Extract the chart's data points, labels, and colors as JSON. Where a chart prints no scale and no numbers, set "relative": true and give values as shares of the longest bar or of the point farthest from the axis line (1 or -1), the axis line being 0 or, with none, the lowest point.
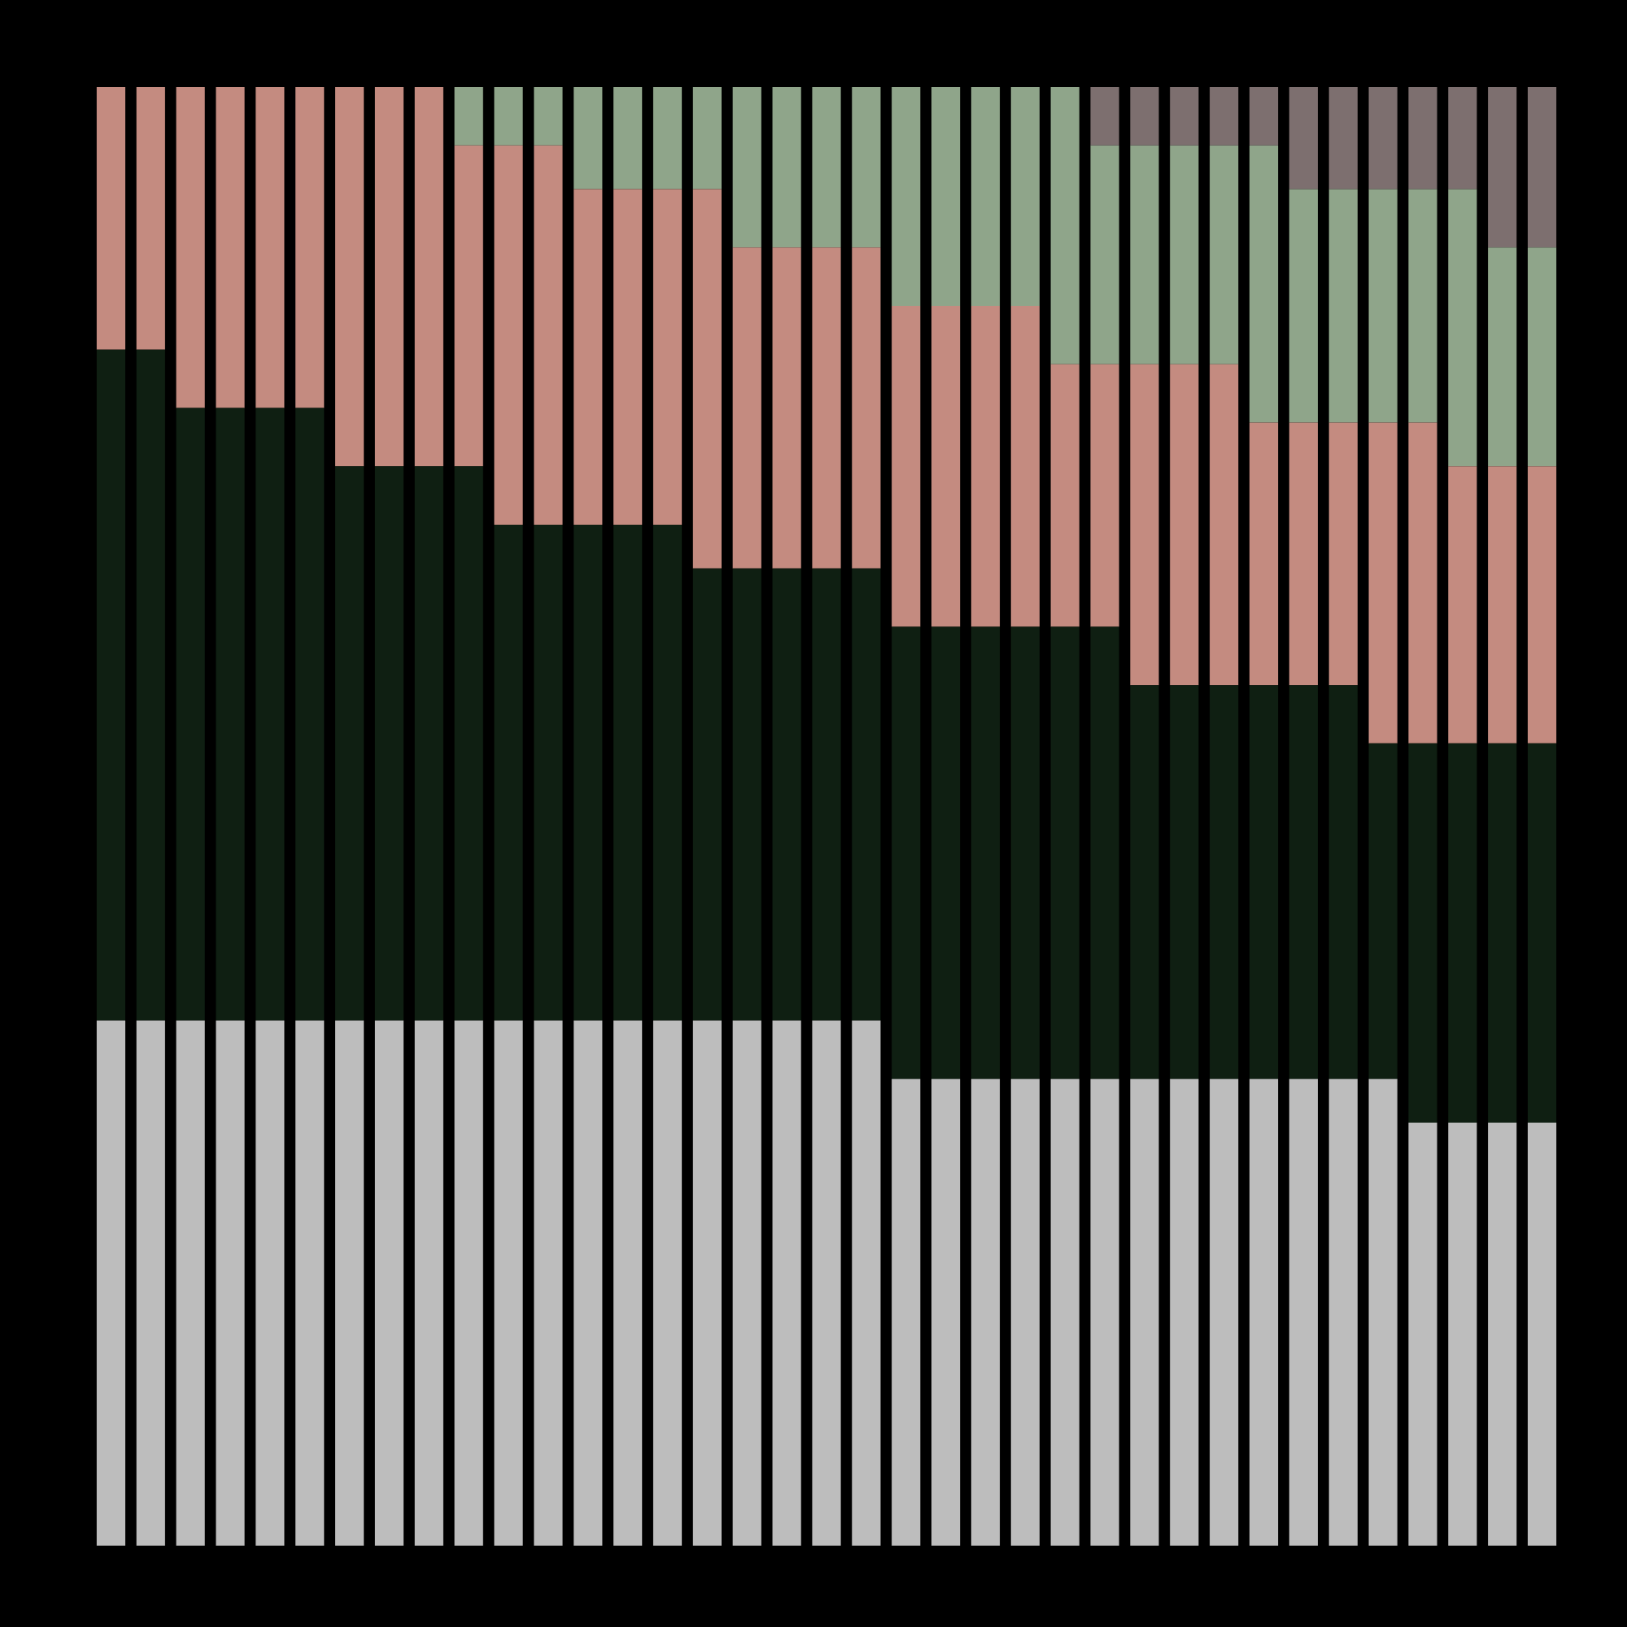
{
  "chart_data": {
    "type": "bar",
    "stacked": true,
    "relative": true,
    "legend": false,
    "grid": false,
    "categories": [
      null,
      null,
      null,
      null,
      null,
      null,
      null,
      null,
      null,
      null,
      null,
      null,
      null,
      null,
      null,
      null,
      null,
      null,
      null,
      null,
      null,
      null,
      null,
      null,
      null,
      null,
      null,
      null,
      null,
      null,
      null,
      null,
      null,
      null,
      null,
      null,
      null
    ],
    "series": [
      {
        "color": "#bdbdbd",
        "values": [
          0.36,
          0.36,
          0.36,
          0.36,
          0.36,
          0.36,
          0.36,
          0.36,
          0.36,
          0.36,
          0.36,
          0.36,
          0.36,
          0.36,
          0.36,
          0.36,
          0.36,
          0.36,
          0.36,
          0.36,
          0.32,
          0.32,
          0.32,
          0.32,
          0.32,
          0.32,
          0.32,
          0.32,
          0.32,
          0.32,
          0.32,
          0.32,
          0.32,
          0.29,
          0.29,
          0.29,
          0.29
        ]
      },
      {
        "color": "#0f1f12",
        "values": [
          0.46,
          0.46,
          0.42,
          0.42,
          0.42,
          0.42,
          0.38,
          0.38,
          0.38,
          0.38,
          0.34,
          0.34,
          0.34,
          0.34,
          0.34,
          0.31,
          0.31,
          0.31,
          0.31,
          0.31,
          0.31,
          0.31,
          0.31,
          0.31,
          0.31,
          0.31,
          0.27,
          0.27,
          0.27,
          0.27,
          0.27,
          0.27,
          0.23,
          0.26,
          0.26,
          0.26,
          0.26
        ]
      },
      {
        "color": "#c48b80",
        "values": [
          0.18,
          0.18,
          0.22,
          0.22,
          0.22,
          0.22,
          0.26,
          0.26,
          0.26,
          0.22,
          0.26,
          0.26,
          0.23,
          0.23,
          0.23,
          0.26,
          0.22,
          0.22,
          0.22,
          0.22,
          0.22,
          0.22,
          0.22,
          0.22,
          0.18,
          0.18,
          0.22,
          0.22,
          0.22,
          0.18,
          0.18,
          0.18,
          0.22,
          0.22,
          0.19,
          0.19,
          0.19
        ]
      },
      {
        "color": "#8fa58a",
        "values": [
          0,
          0,
          0,
          0,
          0,
          0,
          0,
          0,
          0,
          0.04,
          0.04,
          0.04,
          0.07,
          0.07,
          0.07,
          0.07,
          0.11,
          0.11,
          0.11,
          0.11,
          0.15,
          0.15,
          0.15,
          0.15,
          0.19,
          0.15,
          0.15,
          0.15,
          0.15,
          0.19,
          0.16,
          0.16,
          0.16,
          0.16,
          0.19,
          0.15,
          0.15
        ]
      },
      {
        "color": "#7d6f6f",
        "values": [
          0,
          0,
          0,
          0,
          0,
          0,
          0,
          0,
          0,
          0,
          0,
          0,
          0,
          0,
          0,
          0,
          0,
          0,
          0,
          0,
          0,
          0,
          0,
          0,
          0,
          0.04,
          0.04,
          0.04,
          0.04,
          0.04,
          0.07,
          0.07,
          0.07,
          0.07,
          0.07,
          0.11,
          0.11
        ]
      }
    ]
  }
}
